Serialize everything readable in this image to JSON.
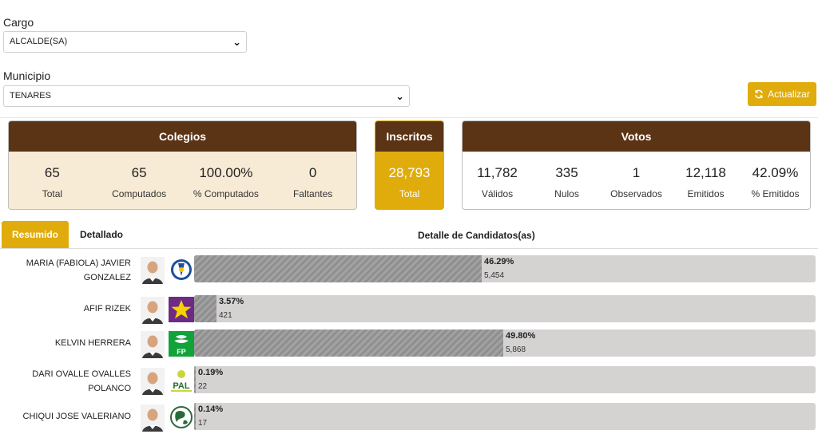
{
  "filters": {
    "cargo_label": "Cargo",
    "cargo_value": "ALCALDE(SA)",
    "municipio_label": "Municipio",
    "municipio_value": "TENARES"
  },
  "refresh_button": {
    "label": "Actualizar",
    "icon": "refresh-icon"
  },
  "colegios": {
    "title": "Colegios",
    "stats": [
      {
        "value": "65",
        "label": "Total"
      },
      {
        "value": "65",
        "label": "Computados"
      },
      {
        "value": "100.00%",
        "label": "% Computados"
      },
      {
        "value": "0",
        "label": "Faltantes"
      }
    ]
  },
  "inscritos": {
    "title": "Inscritos",
    "value": "28,793",
    "label": "Total"
  },
  "votos": {
    "title": "Votos",
    "stats": [
      {
        "value": "11,782",
        "label": "Válidos"
      },
      {
        "value": "335",
        "label": "Nulos"
      },
      {
        "value": "1",
        "label": "Observados"
      },
      {
        "value": "12,118",
        "label": "Emitidos"
      },
      {
        "value": "42.09%",
        "label": "% Emitidos"
      }
    ]
  },
  "tabs": [
    {
      "label": "Resumido",
      "active": true
    },
    {
      "label": "Detallado",
      "active": false
    }
  ],
  "detail_title": "Detalle de Candidatos(as)",
  "candidates": [
    {
      "name_line1": "MARIA (FABIOLA) JAVIER",
      "name_line2": "GONZALEZ",
      "percent_label": "46.29%",
      "percent": 46.29,
      "votes": "5,454",
      "party_logo": "pld-logo"
    },
    {
      "name_line1": "AFIF RIZEK",
      "name_line2": "",
      "percent_label": "3.57%",
      "percent": 3.57,
      "votes": "421",
      "party_logo": "star-party-logo"
    },
    {
      "name_line1": "KELVIN HERRERA",
      "name_line2": "",
      "percent_label": "49.80%",
      "percent": 49.8,
      "votes": "5,868",
      "party_logo": "fp-logo"
    },
    {
      "name_line1": "DARI OVALLE OVALLES",
      "name_line2": "POLANCO",
      "percent_label": "0.19%",
      "percent": 0.19,
      "votes": "22",
      "party_logo": "pal-logo"
    },
    {
      "name_line1": "CHIQUI JOSE VALERIANO",
      "name_line2": "",
      "percent_label": "0.14%",
      "percent": 0.14,
      "votes": "17",
      "party_logo": "globe-party-logo"
    }
  ],
  "colors": {
    "header_brown": "#5b3315",
    "accent_gold": "#e0ac0c",
    "panel_cream": "#f7ebd5"
  }
}
